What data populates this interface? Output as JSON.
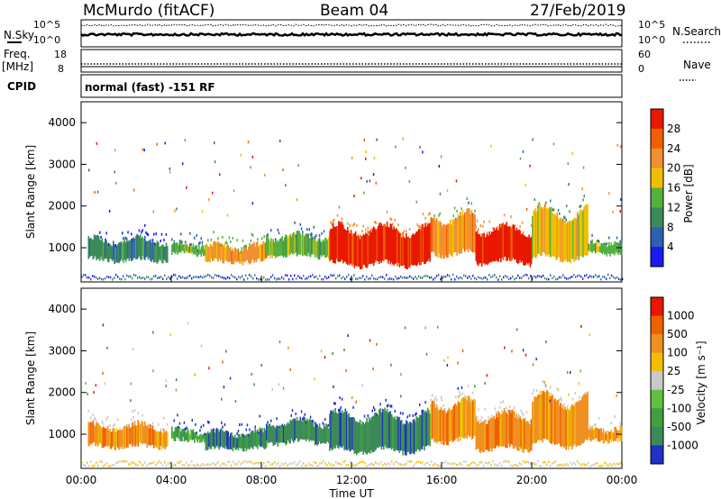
{
  "header": {
    "station": "McMurdo (fitACF)",
    "beam": "Beam 04",
    "date": "27/Feb/2019"
  },
  "status_panel": {
    "nsky_label": "N.Sky",
    "nsky_ticks": [
      "10^5",
      "10^0"
    ],
    "nsearch_label": "N.Search",
    "nsearch_ticks": [
      "10^5",
      "10^0"
    ],
    "freq_label": "Freq.",
    "freq_unit": "[MHz]",
    "freq_ticks": [
      "18",
      "8"
    ],
    "nave_label": "Nave",
    "nave_ticks": [
      "60",
      "0"
    ],
    "cpid_label": "CPID",
    "cpid_text": "normal (fast) -151 RF"
  },
  "chart_data": [
    {
      "type": "heatmap",
      "name": "power",
      "ylabel": "Slant Range [km]",
      "xlabel": "",
      "ylim": [
        180,
        4500
      ],
      "x_range_hours": [
        0,
        24
      ],
      "yticks": [
        "1000",
        "2000",
        "3000",
        "4000"
      ],
      "colorbar": {
        "label": "Power [dB]",
        "ticks": [
          "4",
          "8",
          "12",
          "16",
          "20",
          "24",
          "28"
        ],
        "colors": [
          "#1a1af0",
          "#2f5fb0",
          "#3c8a5a",
          "#55b040",
          "#f0c000",
          "#f09030",
          "#f06000",
          "#e81800"
        ]
      },
      "echo_bands": [
        {
          "start_h": 0.3,
          "end_h": 3.8,
          "range_lo_km": 650,
          "range_hi_km": 1250,
          "level": 2
        },
        {
          "start_h": 4.0,
          "end_h": 5.5,
          "range_lo_km": 800,
          "range_hi_km": 1150,
          "level": 3
        },
        {
          "start_h": 5.5,
          "end_h": 8.2,
          "range_lo_km": 600,
          "range_hi_km": 1100,
          "level": 5
        },
        {
          "start_h": 8.2,
          "end_h": 11.0,
          "range_lo_km": 750,
          "range_hi_km": 1350,
          "level": 3
        },
        {
          "start_h": 11.0,
          "end_h": 15.5,
          "range_lo_km": 550,
          "range_hi_km": 1500,
          "level": 7
        },
        {
          "start_h": 15.5,
          "end_h": 17.5,
          "range_lo_km": 800,
          "range_hi_km": 1800,
          "level": 5
        },
        {
          "start_h": 17.5,
          "end_h": 20.0,
          "range_lo_km": 600,
          "range_hi_km": 1500,
          "level": 7
        },
        {
          "start_h": 20.0,
          "end_h": 22.5,
          "range_lo_km": 700,
          "range_hi_km": 1900,
          "level": 4
        },
        {
          "start_h": 22.5,
          "end_h": 24.0,
          "range_lo_km": 800,
          "range_hi_km": 1200,
          "level": 3
        }
      ]
    },
    {
      "type": "heatmap",
      "name": "velocity",
      "ylabel": "Slant Range [km]",
      "xlabel": "Time UT",
      "ylim": [
        180,
        4500
      ],
      "x_range_hours": [
        0,
        24
      ],
      "yticks": [
        "1000",
        "2000",
        "3000",
        "4000"
      ],
      "xticks": [
        "00:00",
        "04:00",
        "08:00",
        "12:00",
        "16:00",
        "20:00",
        "00:00"
      ],
      "colorbar": {
        "label": "Velocity [m s⁻¹]",
        "ticks": [
          "1000",
          "500",
          "100",
          "25",
          "-25",
          "-100",
          "-500",
          "-1000"
        ],
        "colors": [
          "#2030c8",
          "#3c8a5a",
          "#40a040",
          "#60c040",
          "#c8c8c8",
          "#f0c000",
          "#f09020",
          "#f06000",
          "#e81800"
        ]
      },
      "echo_bands": [
        {
          "start_h": 0.3,
          "end_h": 3.8,
          "range_lo_km": 650,
          "range_hi_km": 1250,
          "level": 6
        },
        {
          "start_h": 4.0,
          "end_h": 5.5,
          "range_lo_km": 800,
          "range_hi_km": 1150,
          "level": 2
        },
        {
          "start_h": 5.5,
          "end_h": 8.2,
          "range_lo_km": 600,
          "range_hi_km": 1100,
          "level": 1
        },
        {
          "start_h": 8.2,
          "end_h": 11.0,
          "range_lo_km": 750,
          "range_hi_km": 1350,
          "level": 1
        },
        {
          "start_h": 11.0,
          "end_h": 15.5,
          "range_lo_km": 550,
          "range_hi_km": 1500,
          "level": 1
        },
        {
          "start_h": 15.5,
          "end_h": 17.5,
          "range_lo_km": 800,
          "range_hi_km": 1800,
          "level": 6
        },
        {
          "start_h": 17.5,
          "end_h": 20.0,
          "range_lo_km": 600,
          "range_hi_km": 1500,
          "level": 6
        },
        {
          "start_h": 20.0,
          "end_h": 22.5,
          "range_lo_km": 700,
          "range_hi_km": 1900,
          "level": 6
        },
        {
          "start_h": 22.5,
          "end_h": 24.0,
          "range_lo_km": 800,
          "range_hi_km": 1200,
          "level": 6
        }
      ]
    }
  ]
}
